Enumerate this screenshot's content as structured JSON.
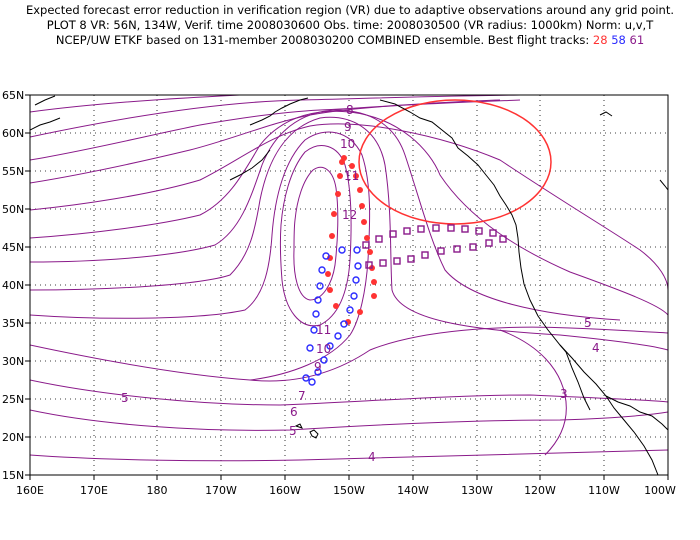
{
  "title": {
    "line1": "Expected forecast error reduction in verification region (VR) due to adaptive observations around any grid point.",
    "line2": "PLOT 8 VR: 56N, 134W, Verif. time 2008030600 Obs. time: 2008030500 (VR radius: 1000km) Norm: u,v,T",
    "line3_prefix": "NCEP/UW ETKF based on 131-member 2008030200 COMBINED ensemble.  Best flight tracks:",
    "track_numbers": [
      "28",
      "58",
      "61"
    ]
  },
  "map": {
    "lat_ticks": [
      "65N",
      "60N",
      "55N",
      "50N",
      "45N",
      "40N",
      "35N",
      "30N",
      "25N",
      "20N",
      "15N"
    ],
    "lon_ticks": [
      "160E",
      "170E",
      "180",
      "170W",
      "160W",
      "150W",
      "140W",
      "130W",
      "120W",
      "110W",
      "100W"
    ],
    "contour_labels": [
      "8",
      "9",
      "10",
      "11",
      "12",
      "11",
      "10",
      "9",
      "7",
      "6",
      "5",
      "5",
      "5",
      "4",
      "4",
      "3"
    ],
    "colors": {
      "contour": "#8a1a8a",
      "track_28": "#ff3333",
      "track_58": "#2b2bff",
      "track_61": "#8a1a8a",
      "vr_circle": "#ff3333",
      "land": "#000000",
      "grid": "#000000"
    }
  }
}
